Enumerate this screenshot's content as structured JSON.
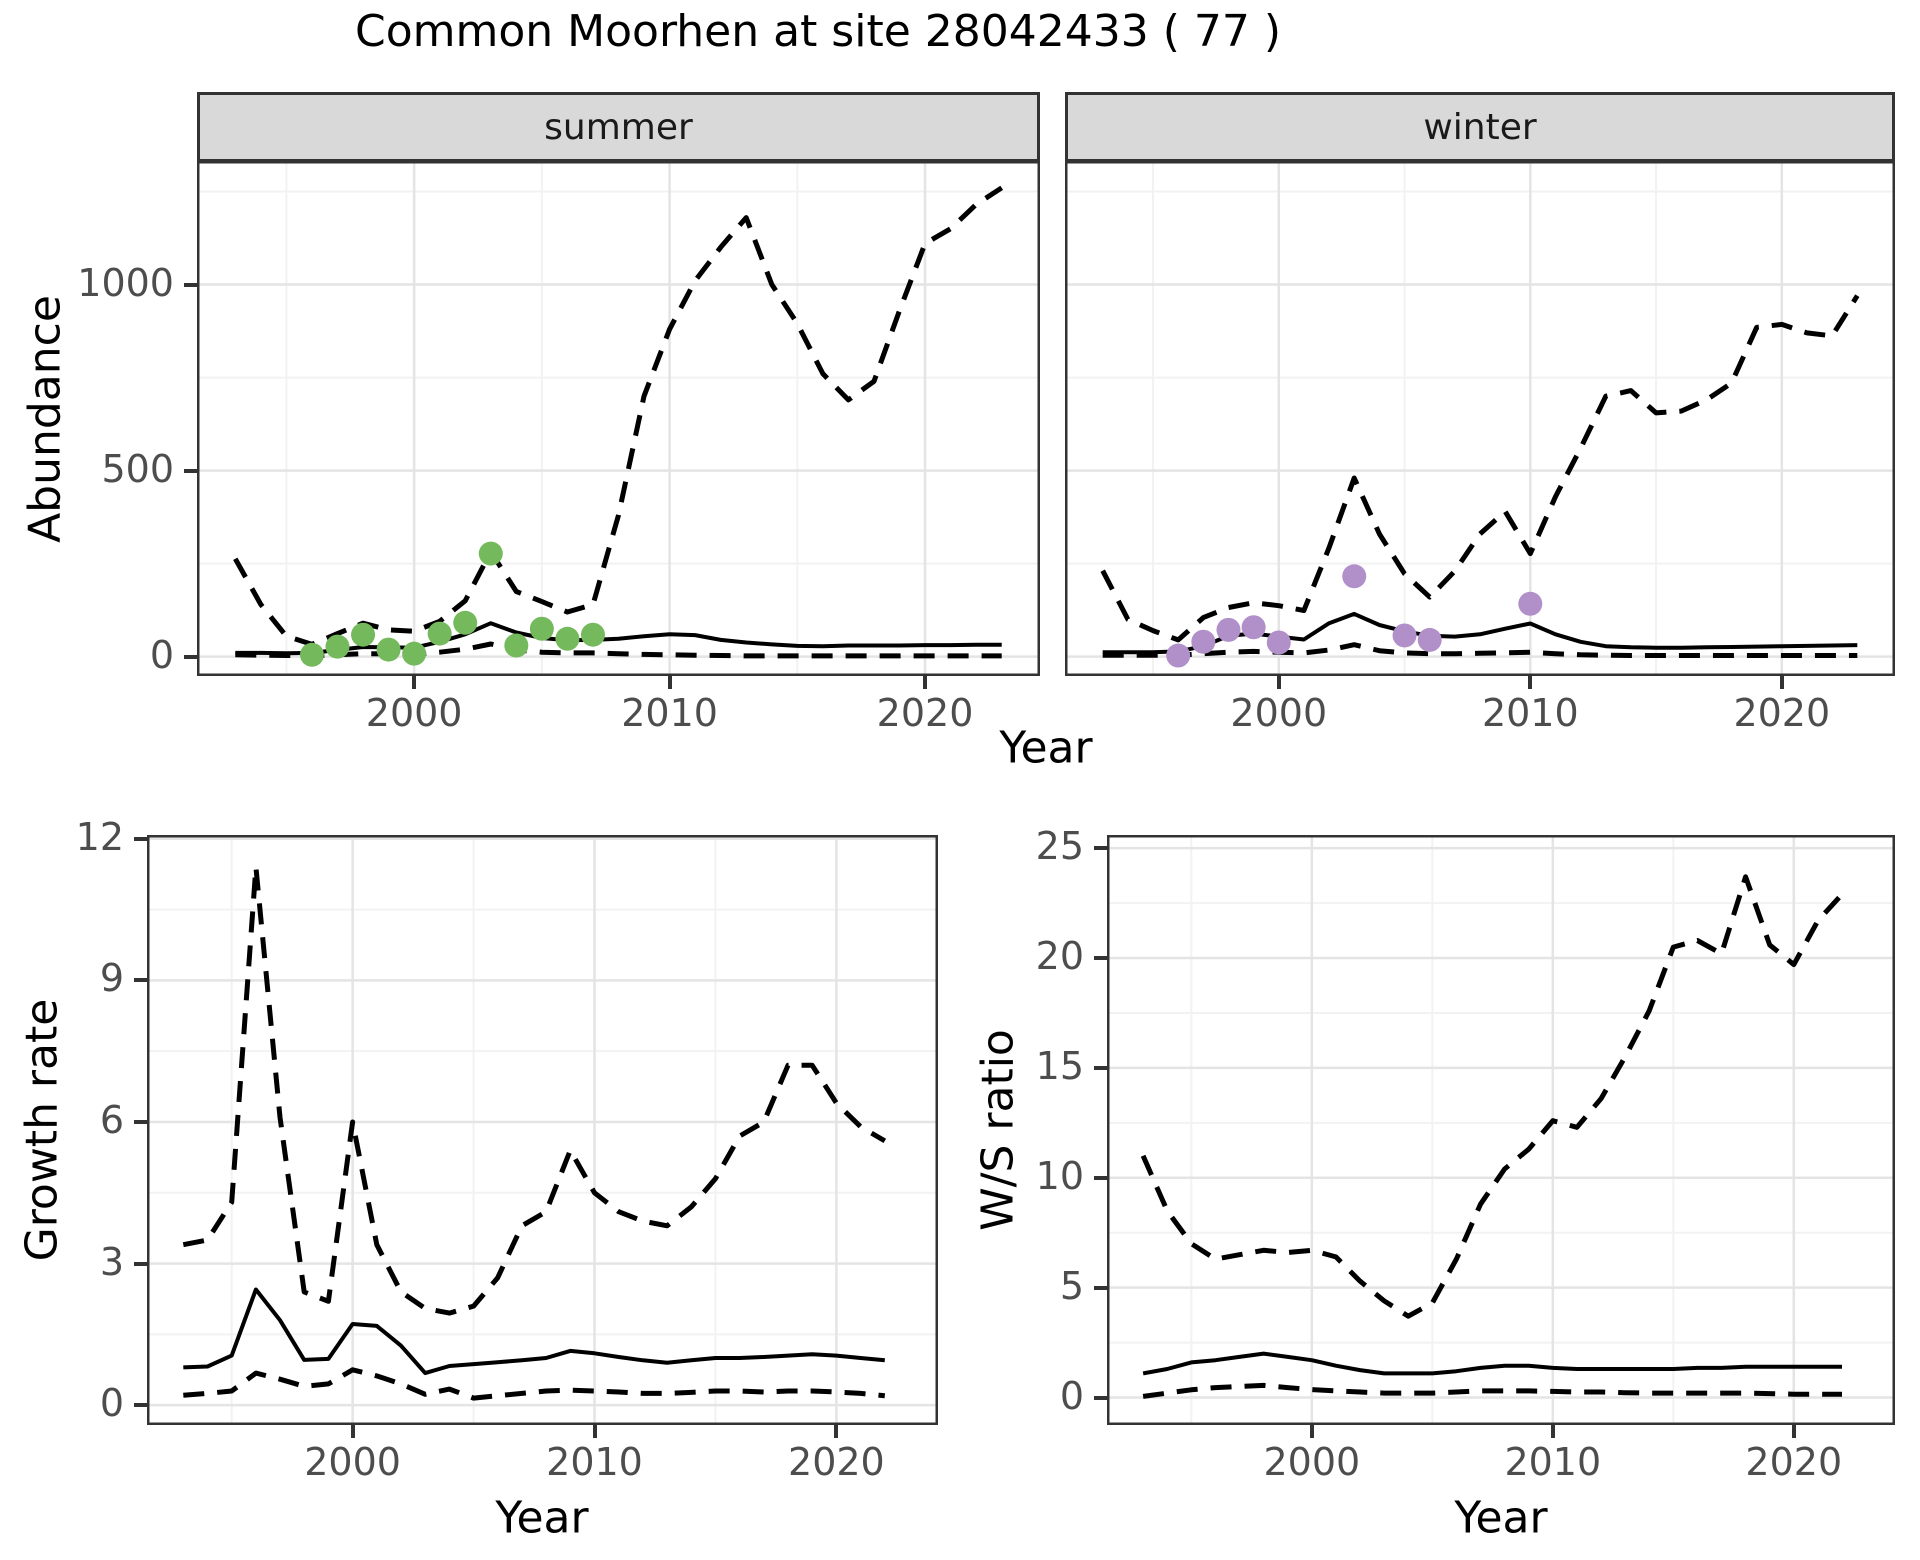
{
  "title": "Common Moorhen at site 28042433 ( 77 )",
  "facets": [
    {
      "label": "summer"
    },
    {
      "label": "winter"
    }
  ],
  "axis_titles": {
    "abundance": "Abundance",
    "year_top": "Year",
    "growth": "Growth rate",
    "year_growth": "Year",
    "ws": "W/S ratio",
    "year_ws": "Year"
  },
  "colors": {
    "summer_point": "#74b95c",
    "winter_point": "#b18fc9",
    "line": "#000000",
    "strip_bg": "#d9d9d9",
    "strip_border": "#333333",
    "panel_border": "#333333",
    "grid_major": "#e4e4e4",
    "grid_minor": "#f2f2f2",
    "tick_text": "#4d4d4d"
  },
  "chart_data": [
    {
      "id": "summer",
      "type": "line",
      "title": "summer",
      "xlabel": "Year",
      "ylabel": "Abundance",
      "x_domain": [
        1991.5,
        2024.5
      ],
      "y_domain": [
        -52,
        1332
      ],
      "x_ticks": [
        2000,
        2010,
        2020
      ],
      "x_minor": [
        1995,
        2005,
        2015
      ],
      "y_ticks": [
        0,
        500,
        1000
      ],
      "y_minor": [
        250,
        750,
        1250
      ],
      "x": [
        1993,
        1994,
        1995,
        1996,
        1997,
        1998,
        1999,
        2000,
        2001,
        2002,
        2003,
        2004,
        2005,
        2006,
        2007,
        2008,
        2009,
        2010,
        2011,
        2012,
        2013,
        2014,
        2015,
        2016,
        2017,
        2018,
        2019,
        2020,
        2021,
        2022,
        2023
      ],
      "series": [
        {
          "name": "upper_ci",
          "style": "dashed",
          "values": [
            263,
            140,
            55,
            33,
            62,
            90,
            72,
            68,
            95,
            150,
            282,
            175,
            148,
            120,
            140,
            380,
            700,
            880,
            1010,
            1100,
            1180,
            1000,
            895,
            760,
            690,
            740,
            930,
            1110,
            1150,
            1215,
            1260
          ]
        },
        {
          "name": "mean",
          "style": "solid",
          "values": [
            10,
            10,
            9,
            10,
            18,
            26,
            25,
            24,
            40,
            60,
            90,
            65,
            50,
            44,
            45,
            48,
            55,
            60,
            58,
            45,
            38,
            33,
            29,
            28,
            30,
            30,
            30,
            31,
            31,
            32,
            32
          ]
        },
        {
          "name": "lower_ci",
          "style": "dashed",
          "values": [
            5,
            4,
            3,
            2,
            5,
            8,
            7,
            6,
            12,
            20,
            34,
            18,
            12,
            10,
            10,
            8,
            6,
            5,
            4,
            3,
            2,
            2,
            2,
            2,
            2,
            2,
            2,
            2,
            2,
            2,
            2
          ]
        }
      ],
      "points": {
        "name": "observed_counts",
        "color": "#74b95c",
        "x": [
          1996,
          1997,
          1998,
          1999,
          2000,
          2001,
          2002,
          2003,
          2004,
          2005,
          2006,
          2007
        ],
        "y": [
          5,
          27,
          59,
          19,
          8,
          62,
          91,
          277,
          30,
          75,
          48,
          59
        ]
      }
    },
    {
      "id": "winter",
      "type": "line",
      "title": "winter",
      "xlabel": "Year",
      "ylabel": "Abundance",
      "x_domain": [
        1991.5,
        2024.5
      ],
      "y_domain": [
        -52,
        1332
      ],
      "x_ticks": [
        2000,
        2010,
        2020
      ],
      "x_minor": [
        1995,
        2005,
        2015
      ],
      "y_ticks": [
        0,
        500,
        1000
      ],
      "y_minor": [
        250,
        750,
        1250
      ],
      "x": [
        1993,
        1994,
        1995,
        1996,
        1997,
        1998,
        1999,
        2000,
        2001,
        2002,
        2003,
        2004,
        2005,
        2006,
        2007,
        2008,
        2009,
        2010,
        2011,
        2012,
        2013,
        2014,
        2015,
        2016,
        2017,
        2018,
        2019,
        2020,
        2021,
        2022,
        2023
      ],
      "series": [
        {
          "name": "upper_ci",
          "style": "dashed",
          "values": [
            231,
            100,
            70,
            45,
            105,
            132,
            145,
            137,
            124,
            293,
            480,
            330,
            223,
            160,
            230,
            330,
            390,
            277,
            430,
            560,
            700,
            715,
            655,
            660,
            690,
            735,
            885,
            893,
            870,
            862,
            970
          ]
        },
        {
          "name": "mean",
          "style": "solid",
          "values": [
            12,
            12,
            12,
            14,
            28,
            56,
            62,
            54,
            46,
            90,
            115,
            85,
            68,
            56,
            54,
            60,
            75,
            89,
            60,
            40,
            28,
            25,
            24,
            24,
            25,
            26,
            27,
            28,
            29,
            30,
            31
          ]
        },
        {
          "name": "lower_ci",
          "style": "dashed",
          "values": [
            4,
            4,
            4,
            4,
            8,
            12,
            14,
            12,
            10,
            18,
            32,
            16,
            10,
            8,
            8,
            9,
            10,
            12,
            8,
            5,
            4,
            3,
            3,
            3,
            3,
            3,
            3,
            3,
            3,
            3,
            3
          ]
        }
      ],
      "points": {
        "name": "observed_counts",
        "color": "#b18fc9",
        "x": [
          1996,
          1997,
          1998,
          1999,
          2000,
          2003,
          2005,
          2006,
          2010
        ],
        "y": [
          3,
          40,
          72,
          79,
          38,
          216,
          57,
          45,
          142
        ]
      }
    },
    {
      "id": "growth",
      "type": "line",
      "title": "Growth rate",
      "xlabel": "Year",
      "ylabel": "Growth rate",
      "x_domain": [
        1991.5,
        2024.2
      ],
      "y_domain": [
        -0.42,
        12.08
      ],
      "x_ticks": [
        2000,
        2010,
        2020
      ],
      "x_minor": [
        1995,
        2005,
        2015
      ],
      "y_ticks": [
        0,
        3,
        6,
        9,
        12
      ],
      "y_minor": [
        1.5,
        4.5,
        7.5,
        10.5
      ],
      "x": [
        1993,
        1994,
        1995,
        1996,
        1997,
        1998,
        1999,
        2000,
        2001,
        2002,
        2003,
        2004,
        2005,
        2006,
        2007,
        2008,
        2009,
        2010,
        2011,
        2012,
        2013,
        2014,
        2015,
        2016,
        2017,
        2018,
        2019,
        2020,
        2021,
        2022
      ],
      "series": [
        {
          "name": "upper_ci",
          "style": "dashed",
          "values": [
            3.4,
            3.5,
            4.3,
            11.4,
            6.1,
            2.4,
            2.2,
            6.0,
            3.4,
            2.4,
            2.05,
            1.95,
            2.1,
            2.7,
            3.8,
            4.1,
            5.4,
            4.5,
            4.1,
            3.9,
            3.8,
            4.2,
            4.8,
            5.7,
            6.0,
            7.2,
            7.2,
            6.4,
            5.9,
            5.6
          ]
        },
        {
          "name": "mean",
          "style": "solid",
          "values": [
            0.8,
            0.82,
            1.05,
            2.45,
            1.8,
            0.96,
            0.98,
            1.72,
            1.68,
            1.26,
            0.68,
            0.83,
            0.87,
            0.91,
            0.95,
            1.0,
            1.15,
            1.1,
            1.02,
            0.95,
            0.9,
            0.95,
            1.0,
            1.0,
            1.02,
            1.05,
            1.08,
            1.05,
            1.0,
            0.95
          ]
        },
        {
          "name": "lower_ci",
          "style": "dashed",
          "values": [
            0.21,
            0.25,
            0.3,
            0.68,
            0.55,
            0.4,
            0.45,
            0.75,
            0.62,
            0.45,
            0.23,
            0.34,
            0.15,
            0.2,
            0.25,
            0.3,
            0.32,
            0.3,
            0.28,
            0.25,
            0.25,
            0.27,
            0.3,
            0.3,
            0.28,
            0.3,
            0.3,
            0.28,
            0.25,
            0.2
          ]
        }
      ],
      "points": null
    },
    {
      "id": "ws",
      "type": "line",
      "title": "W/S ratio",
      "xlabel": "Year",
      "ylabel": "W/S ratio",
      "x_domain": [
        1991.5,
        2024.2
      ],
      "y_domain": [
        -1.25,
        25.6
      ],
      "x_ticks": [
        2000,
        2010,
        2020
      ],
      "x_minor": [
        1995,
        2005,
        2015
      ],
      "y_ticks": [
        0,
        5,
        10,
        15,
        20,
        25
      ],
      "y_minor": [
        2.5,
        7.5,
        12.5,
        17.5,
        22.5
      ],
      "x": [
        1993,
        1994,
        1995,
        1996,
        1997,
        1998,
        1999,
        2000,
        2001,
        2002,
        2003,
        2004,
        2005,
        2006,
        2007,
        2008,
        2009,
        2010,
        2011,
        2012,
        2013,
        2014,
        2015,
        2016,
        2017,
        2018,
        2019,
        2020,
        2021,
        2022
      ],
      "series": [
        {
          "name": "upper_ci",
          "style": "dashed",
          "values": [
            11.0,
            8.5,
            7.0,
            6.3,
            6.5,
            6.7,
            6.6,
            6.7,
            6.4,
            5.3,
            4.4,
            3.7,
            4.3,
            6.3,
            8.8,
            10.4,
            11.3,
            12.6,
            12.3,
            13.6,
            15.5,
            17.6,
            20.5,
            20.8,
            20.2,
            23.7,
            20.6,
            19.7,
            21.7,
            22.9
          ]
        },
        {
          "name": "mean",
          "style": "solid",
          "values": [
            1.1,
            1.3,
            1.6,
            1.7,
            1.85,
            2.0,
            1.85,
            1.7,
            1.45,
            1.25,
            1.1,
            1.1,
            1.1,
            1.2,
            1.35,
            1.45,
            1.45,
            1.35,
            1.3,
            1.3,
            1.3,
            1.3,
            1.3,
            1.35,
            1.35,
            1.4,
            1.4,
            1.4,
            1.4,
            1.4
          ]
        },
        {
          "name": "lower_ci",
          "style": "dashed",
          "values": [
            0.05,
            0.2,
            0.35,
            0.45,
            0.5,
            0.55,
            0.45,
            0.36,
            0.3,
            0.25,
            0.2,
            0.2,
            0.2,
            0.25,
            0.3,
            0.3,
            0.3,
            0.28,
            0.25,
            0.25,
            0.22,
            0.2,
            0.2,
            0.2,
            0.2,
            0.2,
            0.18,
            0.15,
            0.15,
            0.15
          ]
        }
      ],
      "points": null
    }
  ]
}
